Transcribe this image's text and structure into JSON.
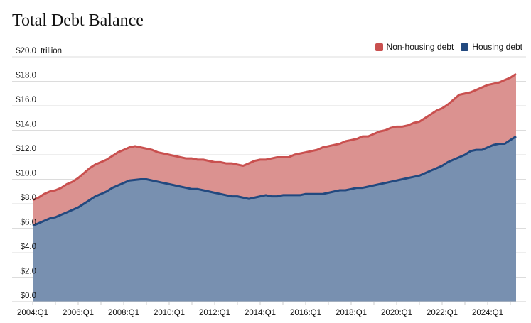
{
  "chart_data": {
    "type": "area",
    "stacked": true,
    "title": "Total Debt Balance",
    "ylabel": "trillion",
    "ylim": [
      0,
      20
    ],
    "yticks": [
      "$0.0",
      "$2.0",
      "$4.0",
      "$6.0",
      "$8.0",
      "$10.0",
      "$12.0",
      "$14.0",
      "$16.0",
      "$18.0",
      "$20.0"
    ],
    "ytick_values": [
      0,
      2,
      4,
      6,
      8,
      10,
      12,
      14,
      16,
      18,
      20
    ],
    "x_start": "2004:Q1",
    "x_end": "2025:Q2",
    "xticks": [
      "2004:Q1",
      "2006:Q1",
      "2008:Q1",
      "2010:Q1",
      "2012:Q1",
      "2014:Q1",
      "2016:Q1",
      "2018:Q1",
      "2020:Q1",
      "2022:Q1",
      "2024:Q1"
    ],
    "grid": true,
    "legend_position": "top-right",
    "series": [
      {
        "name": "Non-housing debt",
        "color": "#c9504f",
        "fill": "#db9290",
        "total_values": [
          8.3,
          8.5,
          8.8,
          9.0,
          9.1,
          9.3,
          9.6,
          9.8,
          10.1,
          10.5,
          10.9,
          11.2,
          11.4,
          11.6,
          11.9,
          12.2,
          12.4,
          12.6,
          12.7,
          12.6,
          12.5,
          12.4,
          12.2,
          12.1,
          12.0,
          11.9,
          11.8,
          11.7,
          11.7,
          11.6,
          11.6,
          11.5,
          11.4,
          11.4,
          11.3,
          11.3,
          11.2,
          11.1,
          11.3,
          11.5,
          11.6,
          11.6,
          11.7,
          11.8,
          11.8,
          11.8,
          12.0,
          12.1,
          12.2,
          12.3,
          12.4,
          12.6,
          12.7,
          12.8,
          12.9,
          13.1,
          13.2,
          13.3,
          13.5,
          13.5,
          13.7,
          13.9,
          14.0,
          14.2,
          14.3,
          14.3,
          14.4,
          14.6,
          14.7,
          15.0,
          15.3,
          15.6,
          15.8,
          16.1,
          16.5,
          16.9,
          17.0,
          17.1,
          17.3,
          17.5,
          17.7,
          17.8,
          17.9,
          18.1,
          18.3,
          18.6
        ]
      },
      {
        "name": "Housing debt",
        "color": "#22497f",
        "fill": "#7890b0",
        "values": [
          6.2,
          6.4,
          6.6,
          6.8,
          6.9,
          7.1,
          7.3,
          7.5,
          7.7,
          8.0,
          8.3,
          8.6,
          8.8,
          9.0,
          9.3,
          9.5,
          9.7,
          9.9,
          9.95,
          10.0,
          10.0,
          9.9,
          9.8,
          9.7,
          9.6,
          9.5,
          9.4,
          9.3,
          9.2,
          9.2,
          9.1,
          9.0,
          8.9,
          8.8,
          8.7,
          8.6,
          8.6,
          8.5,
          8.4,
          8.5,
          8.6,
          8.7,
          8.6,
          8.6,
          8.7,
          8.7,
          8.7,
          8.7,
          8.8,
          8.8,
          8.8,
          8.8,
          8.9,
          9.0,
          9.1,
          9.1,
          9.2,
          9.3,
          9.3,
          9.4,
          9.5,
          9.6,
          9.7,
          9.8,
          9.9,
          10.0,
          10.1,
          10.2,
          10.3,
          10.5,
          10.7,
          10.9,
          11.1,
          11.4,
          11.6,
          11.8,
          12.0,
          12.3,
          12.4,
          12.4,
          12.6,
          12.8,
          12.9,
          12.9,
          13.2,
          13.5
        ]
      }
    ]
  }
}
